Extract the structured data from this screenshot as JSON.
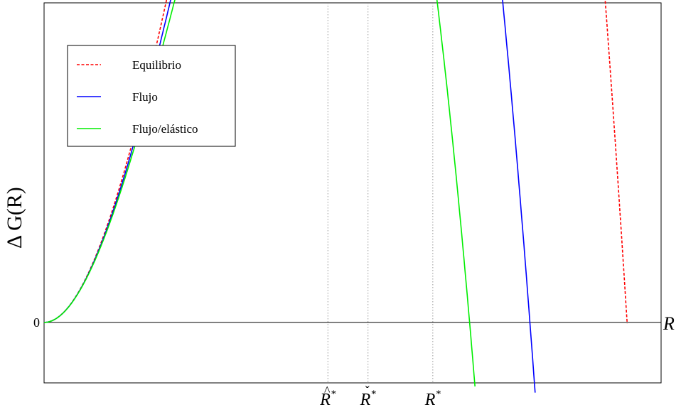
{
  "chart_data": {
    "type": "line",
    "ylabel": "Δ G(R)",
    "xlabel": "R",
    "y_tick_labels": [
      "0"
    ],
    "x_ticks": [
      {
        "name": "r-hat-star",
        "base": "R",
        "accent": "^",
        "sup": "*",
        "x": 4.6
      },
      {
        "name": "r-check-star",
        "base": "R",
        "accent": "ˇ",
        "sup": "*",
        "x": 5.25
      },
      {
        "name": "r-star",
        "base": "R",
        "accent": "",
        "sup": "*",
        "x": 6.3
      }
    ],
    "xlim": [
      0,
      10
    ],
    "ylim": [
      -0.35,
      1.85
    ],
    "legend": {
      "position": "top-left"
    },
    "grid": false,
    "series": [
      {
        "name": "Equilibrio",
        "color": "#ff0000",
        "dash": "dashed",
        "a": 0.6,
        "b": 0.0635,
        "x_max": 9.45
      },
      {
        "name": "Flujo",
        "color": "#0000ff",
        "dash": "solid",
        "a": 0.6,
        "b": 0.0762,
        "x_max": 8.1
      },
      {
        "name": "Flujo/elástico",
        "color": "#00ee00",
        "dash": "solid",
        "a": 0.6,
        "b": 0.087,
        "x_max": 7.2
      }
    ]
  }
}
